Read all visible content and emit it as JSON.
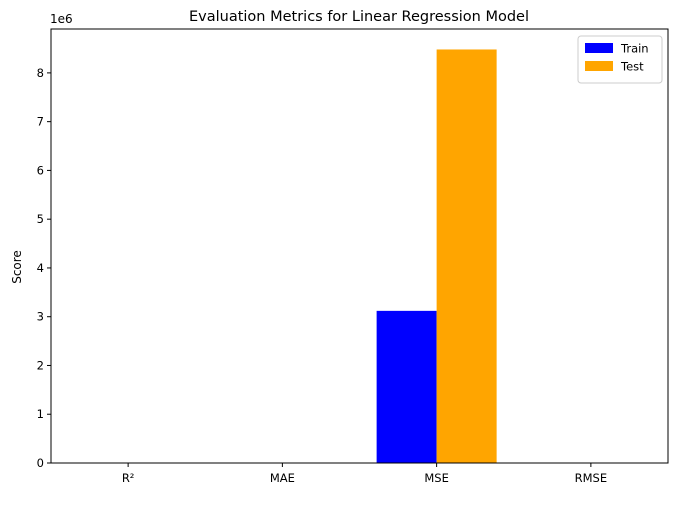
{
  "chart_data": {
    "type": "bar",
    "title": "Evaluation Metrics for Linear Regression Model",
    "xlabel": "",
    "ylabel": "Score",
    "y_multiplier_label": "1e6",
    "categories": [
      "R²",
      "MAE",
      "MSE",
      "RMSE"
    ],
    "series": [
      {
        "name": "Train",
        "color": "#0000ff",
        "values": [
          0.79,
          1250,
          3120000,
          1766
        ]
      },
      {
        "name": "Test",
        "color": "#ffa500",
        "values": [
          0.56,
          1900,
          8480000,
          2912
        ]
      }
    ],
    "y_ticks": [
      0,
      1,
      2,
      3,
      4,
      5,
      6,
      7,
      8
    ],
    "y_tick_scale": 1000000,
    "ylim": [
      0,
      8900000
    ],
    "grid": false,
    "legend": "top-right"
  }
}
